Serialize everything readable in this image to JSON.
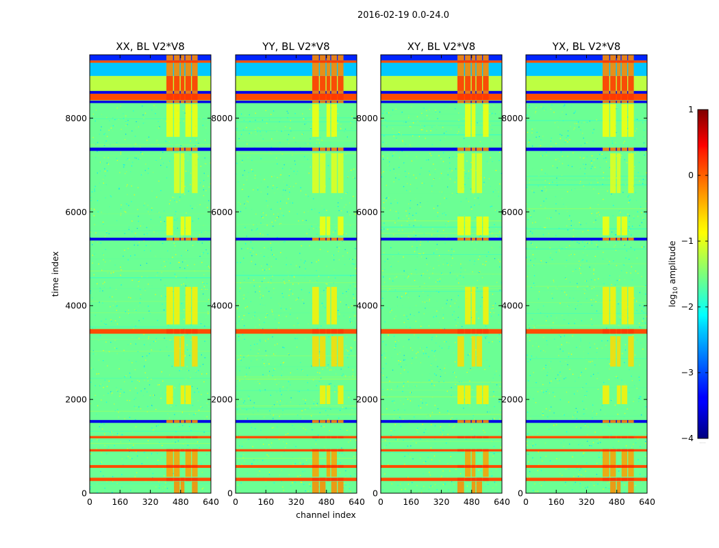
{
  "chart_data": {
    "type": "heatmap",
    "suptitle": "2016-02-19 0.0-24.0",
    "xlabel": "channel index",
    "ylabel": "time index",
    "xlim": [
      0,
      640
    ],
    "ylim": [
      0,
      9350
    ],
    "xticks": [
      "0",
      "160",
      "320",
      "480",
      "640"
    ],
    "yticks": [
      "0",
      "2000",
      "4000",
      "6000",
      "8000"
    ],
    "xtick_values": [
      0,
      160,
      320,
      480,
      640
    ],
    "ytick_values": [
      0,
      2000,
      4000,
      6000,
      8000
    ],
    "colorbar": {
      "label_prefix": "log",
      "label_sub": "10",
      "label_suffix": " amplitude",
      "ticks": [
        "1",
        "0",
        "−1",
        "−2",
        "−3",
        "−4"
      ],
      "tick_values": [
        1,
        0,
        -1,
        -2,
        -3,
        -4
      ],
      "range": [
        -4,
        1
      ],
      "extra": "....."
    },
    "panels": [
      {
        "title": "XX, BL V2*V8",
        "polarization": "XX"
      },
      {
        "title": "YY, BL V2*V8",
        "polarization": "YY"
      },
      {
        "title": "XY, BL V2*V8",
        "polarization": "XY"
      },
      {
        "title": "YX, BL V2*V8",
        "polarization": "YX"
      }
    ],
    "flagged_time_ranges": [
      {
        "range": [
          260,
          330
        ],
        "log_amp": 0
      },
      {
        "range": [
          540,
          600
        ],
        "log_amp": 0
      },
      {
        "range": [
          890,
          940
        ],
        "log_amp": 0
      },
      {
        "range": [
          1170,
          1220
        ],
        "log_amp": 0
      },
      {
        "range": [
          1500,
          1560
        ],
        "log_amp": -3.5
      },
      {
        "range": [
          3400,
          3500
        ],
        "log_amp": 0
      },
      {
        "range": [
          5390,
          5450
        ],
        "log_amp": -3.5
      },
      {
        "range": [
          7300,
          7370
        ],
        "log_amp": -3.5
      },
      {
        "range": [
          8320,
          8370
        ],
        "log_amp": -3.5
      },
      {
        "range": [
          8380,
          8520
        ],
        "log_amp": 0
      },
      {
        "range": [
          8520,
          8580
        ],
        "log_amp": -3.5
      },
      {
        "range": [
          8580,
          8900
        ],
        "log_amp": -1.2
      },
      {
        "range": [
          8900,
          9180
        ],
        "log_amp": -2.4
      },
      {
        "range": [
          9180,
          9230
        ],
        "log_amp": 0
      },
      {
        "range": [
          9230,
          9350
        ],
        "log_amp": -3.2
      }
    ],
    "bright_channel_ranges": [
      [
        405,
        440
      ],
      [
        445,
        475
      ],
      [
        480,
        500
      ],
      [
        505,
        535
      ],
      [
        540,
        570
      ]
    ],
    "background_log_amp": -1.6
  }
}
